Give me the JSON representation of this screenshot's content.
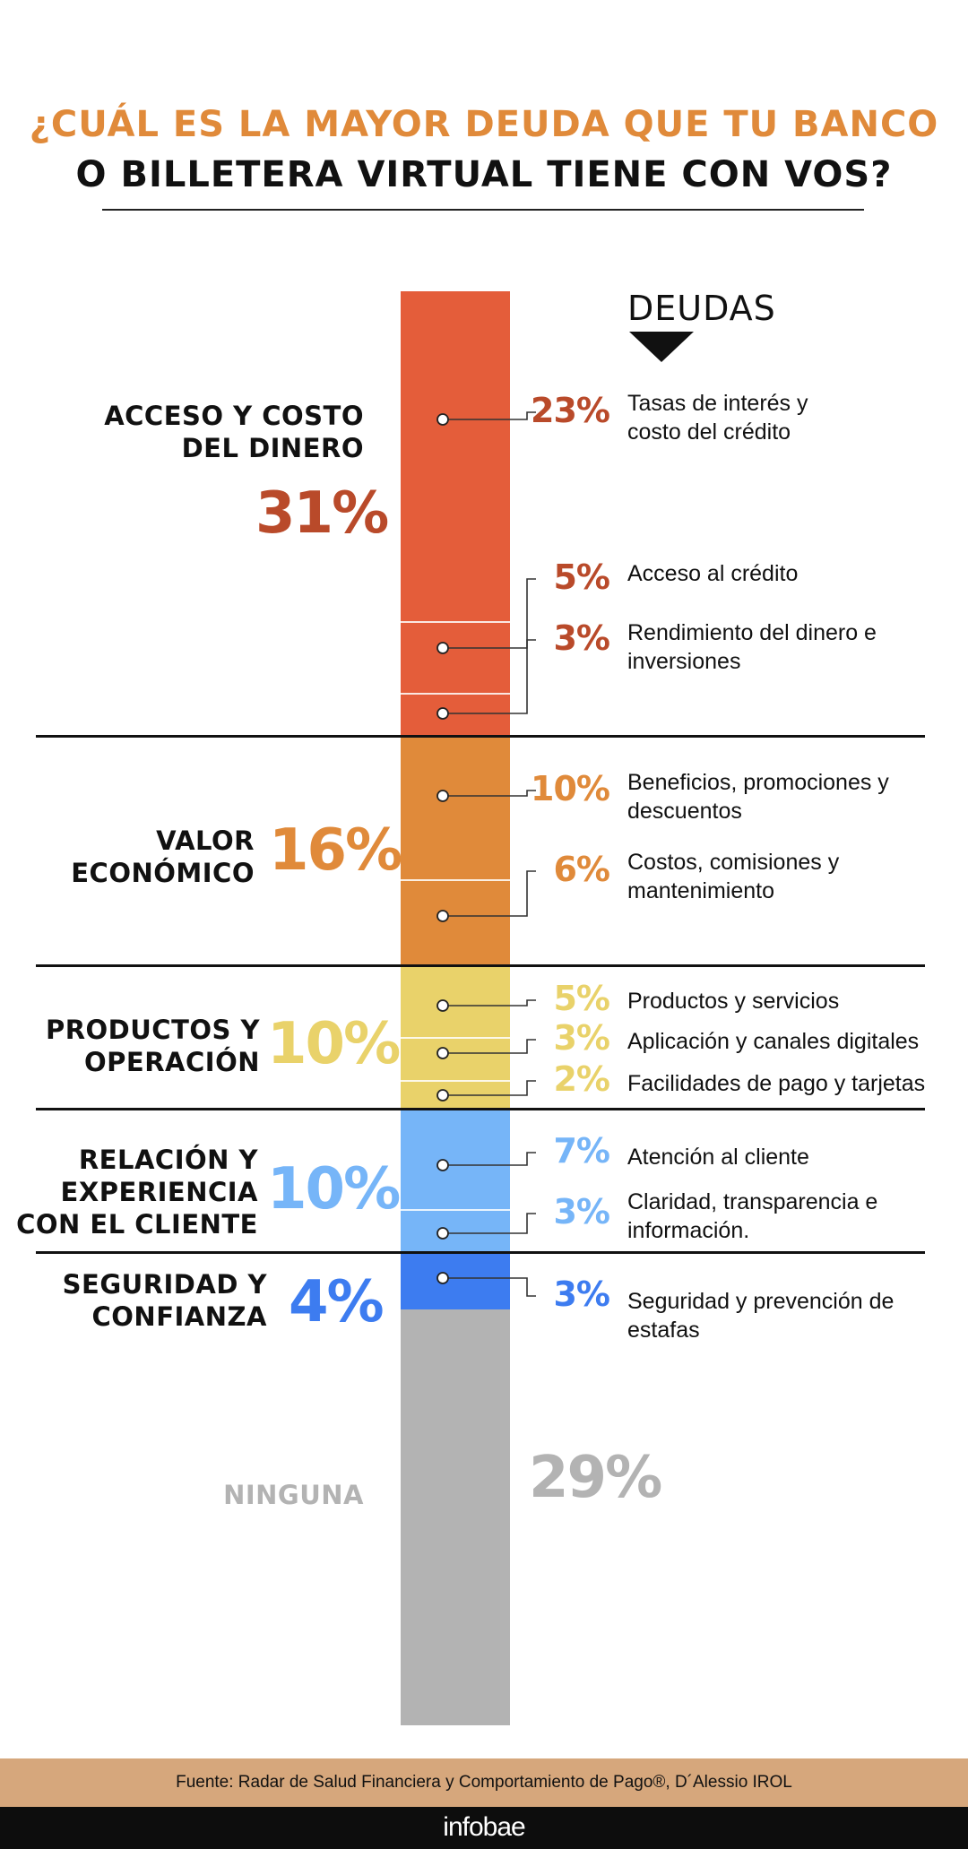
{
  "title": {
    "line1": "¿CUÁL ES LA MAYOR DEUDA QUE TU BANCO",
    "line2": "O BILLETERA VIRTUAL TIENE CON VOS?"
  },
  "deudas_label": "DEUDAS",
  "colors": {
    "acceso": "#e45d3a",
    "acceso_text": "#b94a2a",
    "valor": "#e08a3a",
    "productos": "#e9d26a",
    "relacion": "#76b5f8",
    "seguridad": "#3d7cf0",
    "ninguna": "#b3b3b3",
    "ninguna_text": "#b3b3b3"
  },
  "chart_data": {
    "type": "bar",
    "categories": [
      {
        "id": "acceso",
        "label": "ACCESO Y COSTO DEL DINERO",
        "label_lines": [
          "ACCESO Y COSTO",
          "DEL DINERO"
        ],
        "value": 31,
        "value_label": "31%",
        "items": [
          {
            "label": "Tasas de interés y costo del crédito",
            "label_lines": [
              "Tasas de interés y",
              "costo del crédito"
            ],
            "value": 23,
            "value_label": "23%"
          },
          {
            "label": "Acceso al crédito",
            "label_lines": [
              "Acceso al crédito"
            ],
            "value": 5,
            "value_label": "5%"
          },
          {
            "label": "Rendimiento del dinero e inversiones",
            "label_lines": [
              "Rendimiento del dinero e",
              "inversiones"
            ],
            "value": 3,
            "value_label": "3%"
          }
        ]
      },
      {
        "id": "valor",
        "label": "VALOR ECONÓMICO",
        "label_lines": [
          "VALOR",
          "ECONÓMICO"
        ],
        "value": 16,
        "value_label": "16%",
        "items": [
          {
            "label": "Beneficios, promociones y descuentos",
            "label_lines": [
              "Beneficios, promociones y",
              "descuentos"
            ],
            "value": 10,
            "value_label": "10%"
          },
          {
            "label": "Costos, comisiones y mantenimiento",
            "label_lines": [
              "Costos, comisiones y",
              "mantenimiento"
            ],
            "value": 6,
            "value_label": "6%"
          }
        ]
      },
      {
        "id": "productos",
        "label": "PRODUCTOS Y OPERACIÓN",
        "label_lines": [
          "PRODUCTOS Y",
          "OPERACIÓN"
        ],
        "value": 10,
        "value_label": "10%",
        "items": [
          {
            "label": "Productos y servicios",
            "label_lines": [
              "Productos y servicios"
            ],
            "value": 5,
            "value_label": "5%"
          },
          {
            "label": "Aplicación y canales digitales",
            "label_lines": [
              "Aplicación y canales digitales"
            ],
            "value": 3,
            "value_label": "3%"
          },
          {
            "label": "Facilidades de pago y tarjetas",
            "label_lines": [
              "Facilidades de pago y tarjetas"
            ],
            "value": 2,
            "value_label": "2%"
          }
        ]
      },
      {
        "id": "relacion",
        "label": "RELACIÓN Y EXPERIENCIA CON EL CLIENTE",
        "label_lines": [
          "RELACIÓN Y",
          "EXPERIENCIA",
          "CON EL CLIENTE"
        ],
        "value": 10,
        "value_label": "10%",
        "items": [
          {
            "label": "Atención al cliente",
            "label_lines": [
              "Atención al cliente"
            ],
            "value": 7,
            "value_label": "7%"
          },
          {
            "label": "Claridad, transparencia e información.",
            "label_lines": [
              "Claridad, transparencia e",
              "información."
            ],
            "value": 3,
            "value_label": "3%"
          }
        ]
      },
      {
        "id": "seguridad",
        "label": "SEGURIDAD Y CONFIANZA",
        "label_lines": [
          "SEGURIDAD Y",
          "CONFIANZA"
        ],
        "value": 4,
        "value_label": "4%",
        "items": [
          {
            "label": "Seguridad y prevención de estafas",
            "label_lines": [
              "Seguridad y prevención de",
              "estafas"
            ],
            "value": 3,
            "value_label": "3%"
          }
        ]
      },
      {
        "id": "ninguna",
        "label": "NINGUNA",
        "label_lines": [
          "NINGUNA"
        ],
        "value": 29,
        "value_label": "29%",
        "items": []
      }
    ]
  },
  "source": "Fuente: Radar de Salud Financiera y Comportamiento de Pago®,  D´Alessio IROL",
  "brand": "infobae"
}
